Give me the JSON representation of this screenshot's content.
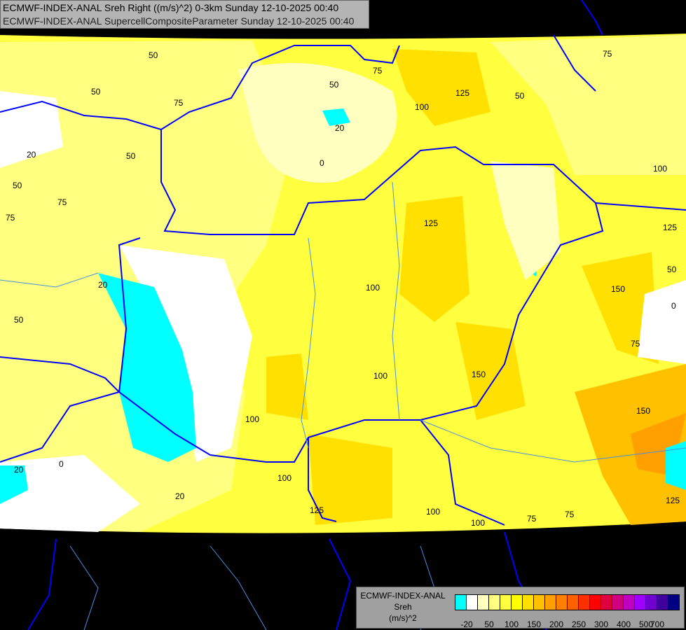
{
  "header": {
    "line1": "ECMWF-INDEX-ANAL Sreh Right ((m/s)^2) 0-3km Sunday 12-10-2025 00:40",
    "line2": "ECMWF-INDEX-ANAL SupercellCompositeParameter Sunday 12-10-2025 00:40"
  },
  "map": {
    "background_color": "#000000",
    "border_color": "#0000ff",
    "river_color": "#4a90e0",
    "contour_labels": [
      "50",
      "75",
      "50",
      "50",
      "20",
      "0",
      "125",
      "100",
      "75",
      "50",
      "75",
      "20",
      "50",
      "75",
      "50",
      "100",
      "125",
      "75",
      "125",
      "100",
      "150",
      "50",
      "0",
      "20",
      "50",
      "100",
      "150",
      "75",
      "100",
      "150",
      "20",
      "100",
      "125",
      "100",
      "100",
      "75",
      "75",
      "125",
      "0",
      "20"
    ]
  },
  "legend": {
    "title": "ECMWF-INDEX-ANAL",
    "variable": "Sreh",
    "unit": "(m/s)^2",
    "colors": [
      "#00ffff",
      "#ffffff",
      "#ffffc0",
      "#ffff80",
      "#ffff40",
      "#ffff00",
      "#ffe000",
      "#ffc000",
      "#ffa000",
      "#ff8000",
      "#ff6000",
      "#ff3000",
      "#ff0000",
      "#e00040",
      "#d00080",
      "#c000c0",
      "#a000ff",
      "#7000d0",
      "#4000a0",
      "#000080"
    ],
    "ticks": [
      "-20",
      "50",
      "100",
      "150",
      "200",
      "250",
      "300",
      "400",
      "500",
      "700"
    ]
  }
}
